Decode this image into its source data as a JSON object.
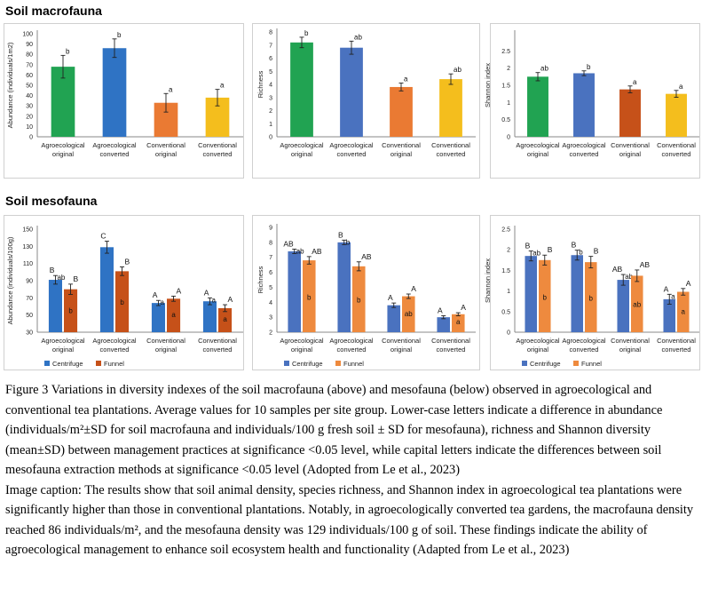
{
  "headings": {
    "macro": "Soil macrofauna",
    "meso": "Soil mesofauna"
  },
  "caption": {
    "figure": "Figure 3 Variations in diversity indexes of the soil macrofauna (above) and mesofauna (below) observed in agroecological and conventional tea plantations. Average values for 10 samples per site group. Lower-case letters indicate a difference in abundance (individuals/m²±SD for soil macrofauna and individuals/100 g fresh soil ± SD for mesofauna), richness and Shannon diversity (mean±SD) between management practices at significance <0.05 level, while capital letters indicate the differences between soil mesofauna extraction methods at significance <0.05 level (Adopted from Le et al., 2023)",
    "image": "Image caption: The results show that soil animal density, species richness, and Shannon index in agroecological tea plantations were significantly higher than those in conventional plantations. Notably, in agroecologically converted tea gardens, the macrofauna density reached 86 individuals/m², and the mesofauna density was 129 individuals/100 g of soil. These findings indicate the ability of agroecological management to enhance soil ecosystem health and functionality (Adapted from Le et al., 2023)"
  },
  "colors": {
    "green": "#21a352",
    "blue": "#2f73c4",
    "orange": "#ea7a33",
    "gold": "#f4be1d",
    "darkorange": "#c65119",
    "lightorange": "#ee8a3e",
    "axis": "#888888",
    "frame": "#d0d0d0"
  },
  "chart_data": [
    {
      "id": "macro-abundance",
      "type": "bar",
      "ylabel": "Abundance (individuals/1m2)",
      "ylim": [
        0,
        100
      ],
      "yticks": [
        "0",
        "10",
        "20",
        "30",
        "40",
        "50",
        "60",
        "70",
        "80",
        "90",
        "100"
      ],
      "categories": [
        [
          "Agroecological",
          "original"
        ],
        [
          "Agroecological",
          "converted"
        ],
        [
          "Conventional",
          "original"
        ],
        [
          "Conventional",
          "converted"
        ]
      ],
      "series": [
        {
          "values": [
            68,
            86,
            33,
            38
          ],
          "errors": [
            11,
            9,
            9,
            8
          ],
          "letters": [
            "b",
            "b",
            "a",
            "a"
          ],
          "colors": [
            "#21a352",
            "#2f73c4",
            "#ea7a33",
            "#f4be1d"
          ]
        }
      ]
    },
    {
      "id": "macro-richness",
      "type": "bar",
      "ylabel": "Richness",
      "ylim": [
        0,
        8
      ],
      "yticks": [
        "0",
        "1",
        "2",
        "3",
        "4",
        "5",
        "6",
        "7",
        "8"
      ],
      "categories": [
        [
          "Agroecological",
          "original"
        ],
        [
          "Agroecological",
          "converted"
        ],
        [
          "Conventional",
          "original"
        ],
        [
          "Conventional",
          "converted"
        ]
      ],
      "series": [
        {
          "values": [
            7.2,
            6.8,
            3.8,
            4.4
          ],
          "errors": [
            0.4,
            0.5,
            0.3,
            0.4
          ],
          "letters": [
            "b",
            "ab",
            "a",
            "ab"
          ],
          "colors": [
            "#21a352",
            "#4a72bf",
            "#ea7a33",
            "#f4be1d"
          ]
        }
      ]
    },
    {
      "id": "macro-shannon",
      "type": "bar",
      "ylabel": "Shannon index",
      "ylim": [
        0,
        3
      ],
      "yticks": [
        "0",
        "0.5",
        "1",
        "1.5",
        "2",
        "2.5"
      ],
      "categories": [
        [
          "Agroecological",
          "original"
        ],
        [
          "Agroecological",
          "converted"
        ],
        [
          "Conventional",
          "original"
        ],
        [
          "Conventional",
          "converted"
        ]
      ],
      "series": [
        {
          "values": [
            1.75,
            1.85,
            1.38,
            1.25
          ],
          "errors": [
            0.12,
            0.07,
            0.1,
            0.1
          ],
          "letters": [
            "ab",
            "b",
            "a",
            "a"
          ],
          "colors": [
            "#21a352",
            "#4a72bf",
            "#c65119",
            "#f4be1d"
          ]
        }
      ]
    },
    {
      "id": "meso-abundance",
      "type": "bar",
      "ylabel": "Abundance (individuals/100g)",
      "ylim": [
        30,
        150
      ],
      "yticks": [
        "30",
        "50",
        "70",
        "90",
        "110",
        "130",
        "150"
      ],
      "categories": [
        [
          "Agroecological",
          "original"
        ],
        [
          "Agroecological",
          "converted"
        ],
        [
          "Conventional",
          "original"
        ],
        [
          "Conventional",
          "converted"
        ]
      ],
      "legend": [
        "Centrifuge",
        "Funnel"
      ],
      "legend_position": "bottom",
      "series": [
        {
          "name": "Centrifuge",
          "color": "#2f73c4",
          "values": [
            91,
            129,
            64,
            66
          ],
          "errors": [
            5,
            7,
            3,
            4
          ],
          "cap_letters": [
            "B",
            "C",
            "A",
            "A"
          ],
          "low_letters": [
            "ab",
            "",
            "a",
            "a"
          ]
        },
        {
          "name": "Funnel",
          "color": "#c65119",
          "values": [
            80,
            101,
            69,
            58
          ],
          "errors": [
            6,
            5,
            3,
            4
          ],
          "cap_letters": [
            "B",
            "B",
            "A",
            "A"
          ],
          "low_letters": [
            "b",
            "b",
            "a",
            "a"
          ]
        }
      ]
    },
    {
      "id": "meso-richness",
      "type": "bar",
      "ylabel": "Richness",
      "ylim": [
        2,
        9
      ],
      "yticks": [
        "2",
        "3",
        "4",
        "5",
        "6",
        "7",
        "8",
        "9"
      ],
      "categories": [
        [
          "Agroecological",
          "original"
        ],
        [
          "Agroecological",
          "converted"
        ],
        [
          "Conventional",
          "original"
        ],
        [
          "Conventional",
          "converted"
        ]
      ],
      "legend": [
        "Centrifuge",
        "Funnel"
      ],
      "legend_position": "bottom",
      "series": [
        {
          "name": "Centrifuge",
          "color": "#4a72bf",
          "values": [
            7.4,
            8.0,
            3.8,
            3.0
          ],
          "errors": [
            0.15,
            0.15,
            0.15,
            0.1
          ],
          "cap_letters": [
            "AB",
            "B",
            "A",
            "A"
          ],
          "low_letters": [
            "ab",
            "b",
            "",
            ""
          ]
        },
        {
          "name": "Funnel",
          "color": "#ee8a3e",
          "values": [
            6.8,
            6.4,
            4.4,
            3.2
          ],
          "errors": [
            0.25,
            0.3,
            0.15,
            0.1
          ],
          "cap_letters": [
            "AB",
            "AB",
            "A",
            "A"
          ],
          "low_letters": [
            "b",
            "b",
            "ab",
            "a"
          ]
        }
      ]
    },
    {
      "id": "meso-shannon",
      "type": "bar",
      "ylabel": "Shannon index",
      "ylim": [
        0,
        2.5
      ],
      "yticks": [
        "0",
        "0.5",
        "1",
        "1.5",
        "2",
        "2.5"
      ],
      "categories": [
        [
          "Agroecological",
          "original"
        ],
        [
          "Agroecological",
          "converted"
        ],
        [
          "Conventional",
          "original"
        ],
        [
          "Conventional",
          "converted"
        ]
      ],
      "legend": [
        "Centrifuge",
        "Funnel"
      ],
      "legend_position": "bottom",
      "series": [
        {
          "name": "Centrifuge",
          "color": "#4a72bf",
          "values": [
            1.85,
            1.87,
            1.27,
            0.8
          ],
          "errors": [
            0.12,
            0.12,
            0.13,
            0.12
          ],
          "cap_letters": [
            "B",
            "B",
            "AB",
            "A"
          ],
          "low_letters": [
            "ab",
            "b",
            "ab",
            "a"
          ]
        },
        {
          "name": "Funnel",
          "color": "#ee8a3e",
          "values": [
            1.75,
            1.7,
            1.37,
            0.98
          ],
          "errors": [
            0.12,
            0.14,
            0.14,
            0.08
          ],
          "cap_letters": [
            "B",
            "B",
            "AB",
            "A"
          ],
          "low_letters": [
            "b",
            "b",
            "ab",
            "a"
          ]
        }
      ]
    }
  ]
}
